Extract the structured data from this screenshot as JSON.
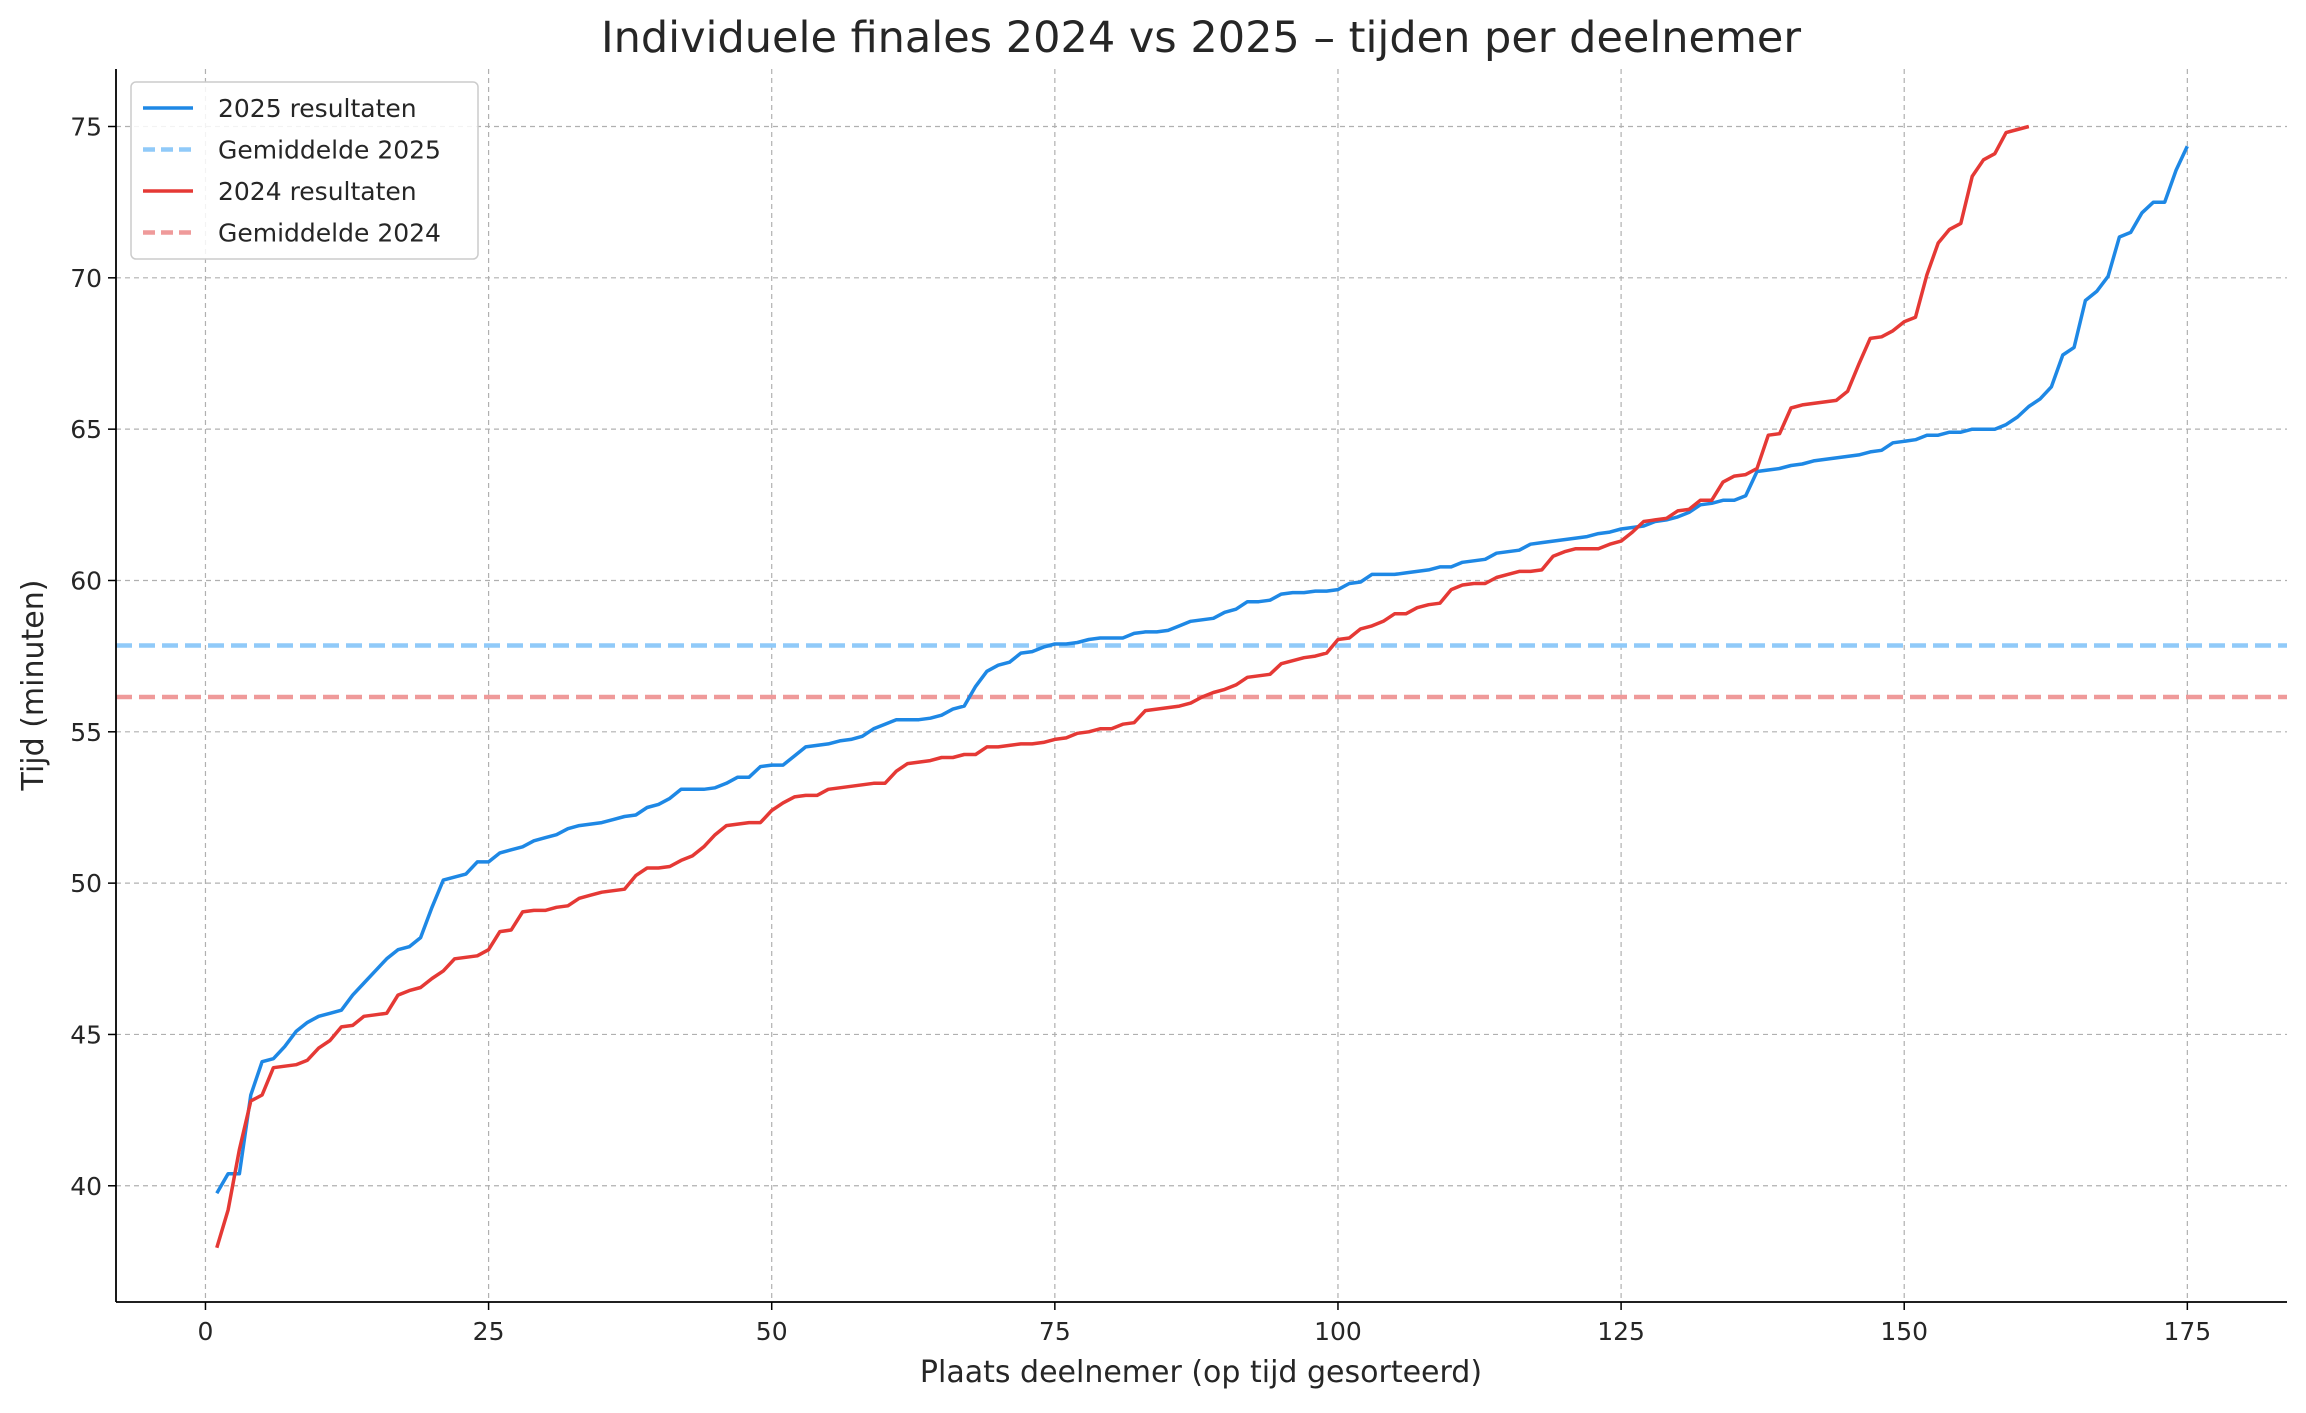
{
  "chart_data": {
    "type": "line",
    "title": "Individuele finales 2024 vs 2025 – tijden per deelnemer",
    "xlabel": "Plaats deelnemer (op tijd gesorteerd)",
    "ylabel": "Tijd (minuten)",
    "xlim": [
      -7.9,
      183.8
    ],
    "ylim": [
      36.16,
      76.9
    ],
    "xticks": [
      0,
      25,
      50,
      75,
      100,
      125,
      150,
      175
    ],
    "yticks": [
      40,
      45,
      50,
      55,
      60,
      65,
      70,
      75
    ],
    "grid": true,
    "legend_position": "top-left",
    "series": [
      {
        "name": "2025 resultaten",
        "color": "#1e88e5",
        "style": "solid",
        "x_start": 1,
        "values": [
          39.75,
          40.4,
          40.4,
          43.0,
          44.1,
          44.2,
          44.6,
          45.1,
          45.4,
          45.6,
          45.7,
          45.8,
          46.3,
          46.7,
          47.1,
          47.5,
          47.8,
          47.9,
          48.2,
          49.2,
          50.1,
          50.2,
          50.3,
          50.7,
          50.7,
          51.0,
          51.1,
          51.2,
          51.4,
          51.5,
          51.6,
          51.8,
          51.9,
          51.95,
          52.0,
          52.1,
          52.2,
          52.25,
          52.5,
          52.6,
          52.8,
          53.1,
          53.1,
          53.1,
          53.15,
          53.3,
          53.5,
          53.5,
          53.85,
          53.9,
          53.9,
          54.2,
          54.5,
          54.55,
          54.6,
          54.7,
          54.75,
          54.85,
          55.1,
          55.25,
          55.4,
          55.4,
          55.4,
          55.45,
          55.55,
          55.75,
          55.85,
          56.5,
          57.0,
          57.2,
          57.3,
          57.6,
          57.65,
          57.8,
          57.9,
          57.9,
          57.95,
          58.05,
          58.1,
          58.1,
          58.1,
          58.25,
          58.3,
          58.3,
          58.35,
          58.5,
          58.65,
          58.7,
          58.75,
          58.95,
          59.05,
          59.3,
          59.3,
          59.35,
          59.55,
          59.6,
          59.6,
          59.65,
          59.65,
          59.7,
          59.9,
          59.95,
          60.2,
          60.2,
          60.2,
          60.25,
          60.3,
          60.35,
          60.45,
          60.45,
          60.6,
          60.65,
          60.7,
          60.9,
          60.95,
          61.0,
          61.2,
          61.25,
          61.3,
          61.35,
          61.4,
          61.45,
          61.55,
          61.6,
          61.7,
          61.75,
          61.8,
          61.95,
          62.0,
          62.1,
          62.25,
          62.5,
          62.55,
          62.65,
          62.65,
          62.8,
          63.6,
          63.65,
          63.7,
          63.8,
          63.85,
          63.95,
          64.0,
          64.05,
          64.1,
          64.15,
          64.25,
          64.3,
          64.55,
          64.6,
          64.65,
          64.8,
          64.8,
          64.9,
          64.9,
          65.0,
          65.0,
          65.0,
          65.15,
          65.4,
          65.75,
          66.0,
          66.4,
          67.45,
          67.7,
          69.25,
          69.55,
          70.05,
          71.35,
          71.5,
          72.15,
          72.5,
          72.5,
          73.55,
          74.35
        ]
      },
      {
        "name": "Gemiddelde 2025",
        "color": "#90caf9",
        "style": "dashed",
        "value": 57.85
      },
      {
        "name": "2024 resultaten",
        "color": "#e53935",
        "style": "solid",
        "x_start": 1,
        "values": [
          37.95,
          39.2,
          41.2,
          42.8,
          43.0,
          43.9,
          43.95,
          44.0,
          44.15,
          44.55,
          44.8,
          45.25,
          45.3,
          45.6,
          45.65,
          45.7,
          46.3,
          46.45,
          46.55,
          46.85,
          47.1,
          47.5,
          47.55,
          47.6,
          47.8,
          48.4,
          48.45,
          49.05,
          49.1,
          49.1,
          49.2,
          49.25,
          49.5,
          49.6,
          49.7,
          49.75,
          49.8,
          50.25,
          50.5,
          50.5,
          50.55,
          50.75,
          50.9,
          51.2,
          51.6,
          51.9,
          51.95,
          52.0,
          52.0,
          52.4,
          52.65,
          52.85,
          52.9,
          52.9,
          53.1,
          53.15,
          53.2,
          53.25,
          53.3,
          53.3,
          53.7,
          53.95,
          54.0,
          54.05,
          54.15,
          54.15,
          54.25,
          54.25,
          54.5,
          54.5,
          54.55,
          54.6,
          54.6,
          54.65,
          54.75,
          54.8,
          54.95,
          55.0,
          55.1,
          55.1,
          55.25,
          55.3,
          55.7,
          55.75,
          55.8,
          55.85,
          55.95,
          56.15,
          56.3,
          56.4,
          56.55,
          56.8,
          56.85,
          56.9,
          57.25,
          57.35,
          57.45,
          57.5,
          57.6,
          58.05,
          58.1,
          58.4,
          58.5,
          58.65,
          58.9,
          58.9,
          59.1,
          59.2,
          59.25,
          59.7,
          59.85,
          59.9,
          59.9,
          60.1,
          60.2,
          60.3,
          60.3,
          60.35,
          60.8,
          60.95,
          61.05,
          61.05,
          61.05,
          61.2,
          61.3,
          61.6,
          61.95,
          62.0,
          62.05,
          62.3,
          62.35,
          62.65,
          62.65,
          63.25,
          63.45,
          63.5,
          63.7,
          64.8,
          64.85,
          65.7,
          65.8,
          65.85,
          65.9,
          65.95,
          66.25,
          67.15,
          68.0,
          68.05,
          68.25,
          68.55,
          68.7,
          70.1,
          71.15,
          71.6,
          71.8,
          73.35,
          73.9,
          74.1,
          74.8,
          74.9,
          75.0
        ]
      },
      {
        "name": "Gemiddelde 2024",
        "color": "#ef9a9a",
        "style": "dashed",
        "value": 56.15
      }
    ]
  }
}
